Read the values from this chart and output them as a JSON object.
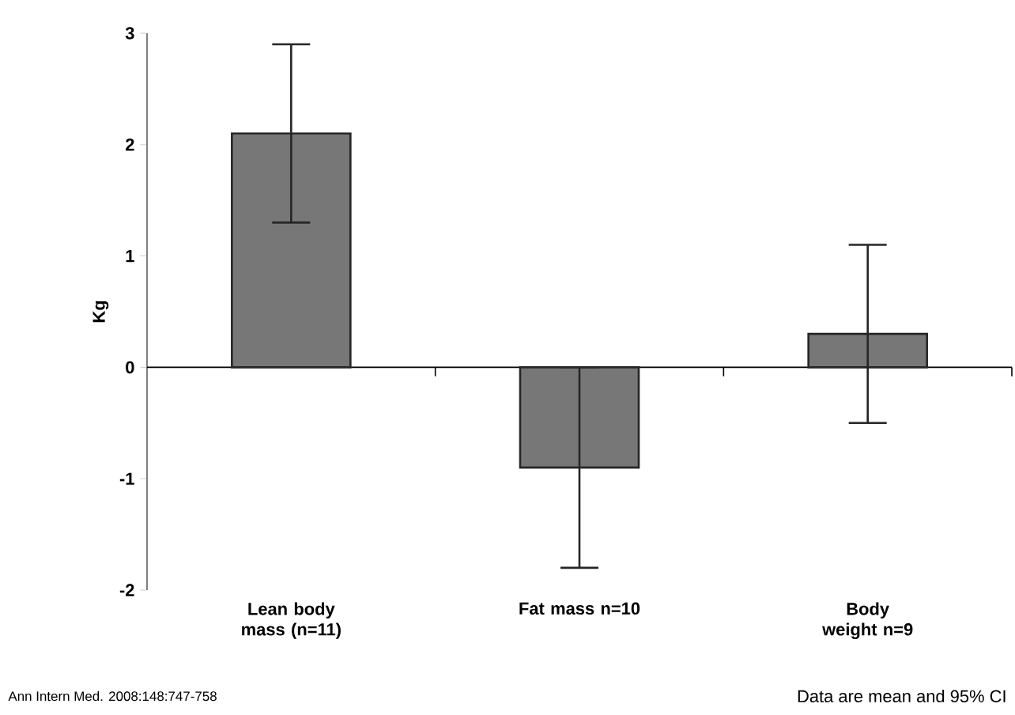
{
  "chart_data": {
    "type": "bar",
    "ylabel": "Kg",
    "categories": [
      "Lean body mass (n=11)",
      "Fat mass n=10",
      "Body weight n=9"
    ],
    "values": [
      2.1,
      -0.9,
      0.3
    ],
    "errors": [
      [
        1.3,
        2.9
      ],
      [
        -1.8,
        0
      ],
      [
        -0.5,
        1.1
      ]
    ],
    "color": "#777777",
    "ylim": [
      -2,
      3
    ],
    "yticks": [
      -2,
      -1,
      0,
      1,
      2,
      3
    ],
    "annotations": [
      "Ann Intern Med. 2008:148:747-758",
      "Data are mean and 95% CI"
    ]
  }
}
